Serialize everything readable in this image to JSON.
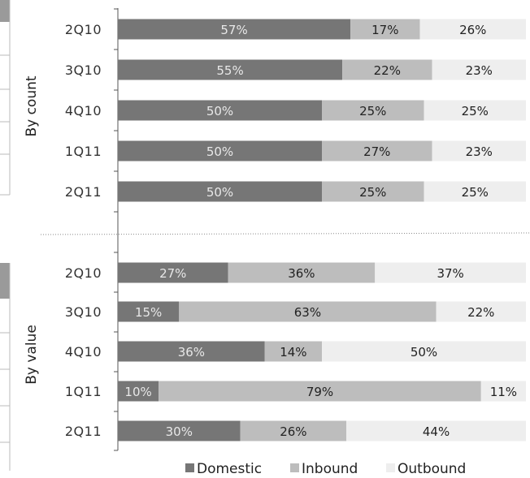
{
  "chart_data": {
    "type": "bar",
    "stacked": "percent",
    "orientation": "horizontal",
    "colors": {
      "Domestic": "#767676",
      "Inbound": "#bdbdbd",
      "Outbound": "#eeeeee"
    },
    "panels": [
      {
        "label": "By count",
        "categories": [
          "2Q10",
          "3Q10",
          "4Q10",
          "1Q11",
          "2Q11"
        ],
        "series": [
          {
            "name": "Domestic",
            "values": [
              57,
              55,
              50,
              50,
              50
            ],
            "labels": [
              "57%",
              "55%",
              "50%",
              "50%",
              "50%"
            ]
          },
          {
            "name": "Inbound",
            "values": [
              17,
              22,
              25,
              27,
              25
            ],
            "labels": [
              "17%",
              "22%",
              "25%",
              "27%",
              "25%"
            ]
          },
          {
            "name": "Outbound",
            "values": [
              26,
              23,
              25,
              23,
              25
            ],
            "labels": [
              "26%",
              "23%",
              "25%",
              "23%",
              "25%"
            ]
          }
        ]
      },
      {
        "label": "By value",
        "categories": [
          "2Q10",
          "3Q10",
          "4Q10",
          "1Q11",
          "2Q11"
        ],
        "series": [
          {
            "name": "Domestic",
            "values": [
              27,
              15,
              36,
              10,
              30
            ],
            "labels": [
              "27%",
              "15%",
              "36%",
              "10%",
              "30%"
            ]
          },
          {
            "name": "Inbound",
            "values": [
              36,
              63,
              14,
              79,
              26
            ],
            "labels": [
              "36%",
              "63%",
              "14%",
              "79%",
              "26%"
            ]
          },
          {
            "name": "Outbound",
            "values": [
              37,
              22,
              50,
              11,
              44
            ],
            "labels": [
              "37%",
              "22%",
              "50%",
              "11%",
              "44%"
            ]
          }
        ]
      }
    ],
    "legend": {
      "position": "bottom",
      "items": [
        "Domestic",
        "Inbound",
        "Outbound"
      ]
    }
  }
}
